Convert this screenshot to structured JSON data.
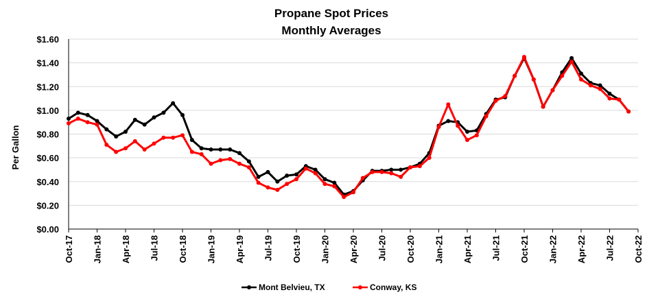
{
  "chart_data": {
    "type": "line",
    "title": "Propane Spot Prices",
    "subtitle": "Monthly Averages",
    "ylabel": "Per Gallon",
    "xlabel": "",
    "ylim": [
      0,
      1.6
    ],
    "y_ticks": [
      0,
      0.2,
      0.4,
      0.6,
      0.8,
      1.0,
      1.2,
      1.4,
      1.6
    ],
    "y_tick_labels": [
      "$0.00",
      "$0.20",
      "$0.40",
      "$0.60",
      "$0.80",
      "$1.00",
      "$1.20",
      "$1.40",
      "$1.60"
    ],
    "x_tick_labels": [
      "Oct-17",
      "Jan-18",
      "Apr-18",
      "Jul-18",
      "Oct-18",
      "Jan-19",
      "Apr-19",
      "Jul-19",
      "Oct-19",
      "Jan-20",
      "Apr-20",
      "Jul-20",
      "Oct-20",
      "Jan-21",
      "Apr-21",
      "Jul-21",
      "Oct-21",
      "Jan-22",
      "Apr-22",
      "Jul-22",
      "Oct-22"
    ],
    "x_tick_step_months": 3,
    "x_start": "Oct-17",
    "gridlines": "horizontal",
    "legend_position": "bottom",
    "series": [
      {
        "name": "Mont Belvieu, TX",
        "color": "#000000",
        "values": [
          0.93,
          0.98,
          0.96,
          0.91,
          0.84,
          0.78,
          0.82,
          0.92,
          0.88,
          0.94,
          0.98,
          1.06,
          0.96,
          0.75,
          0.68,
          0.67,
          0.67,
          0.67,
          0.64,
          0.57,
          0.44,
          0.48,
          0.4,
          0.45,
          0.46,
          0.53,
          0.5,
          0.42,
          0.39,
          0.29,
          0.32,
          0.41,
          0.49,
          0.49,
          0.5,
          0.5,
          0.52,
          0.55,
          0.64,
          0.87,
          0.91,
          0.9,
          0.82,
          0.83,
          0.97,
          1.09,
          1.11,
          1.29,
          1.44,
          1.26,
          1.03,
          1.17,
          1.32,
          1.44,
          1.31,
          1.23,
          1.21,
          1.14,
          1.09,
          0.99
        ]
      },
      {
        "name": "Conway, KS",
        "color": "#ff0000",
        "values": [
          0.89,
          0.93,
          0.9,
          0.88,
          0.71,
          0.65,
          0.68,
          0.74,
          0.67,
          0.72,
          0.77,
          0.77,
          0.79,
          0.65,
          0.63,
          0.55,
          0.58,
          0.59,
          0.55,
          0.52,
          0.39,
          0.35,
          0.33,
          0.38,
          0.42,
          0.51,
          0.47,
          0.38,
          0.36,
          0.27,
          0.31,
          0.43,
          0.48,
          0.48,
          0.47,
          0.44,
          0.52,
          0.53,
          0.6,
          0.86,
          1.05,
          0.87,
          0.75,
          0.79,
          0.95,
          1.08,
          1.12,
          1.29,
          1.45,
          1.26,
          1.03,
          1.17,
          1.29,
          1.41,
          1.26,
          1.21,
          1.18,
          1.1,
          1.09,
          0.99
        ]
      }
    ]
  }
}
